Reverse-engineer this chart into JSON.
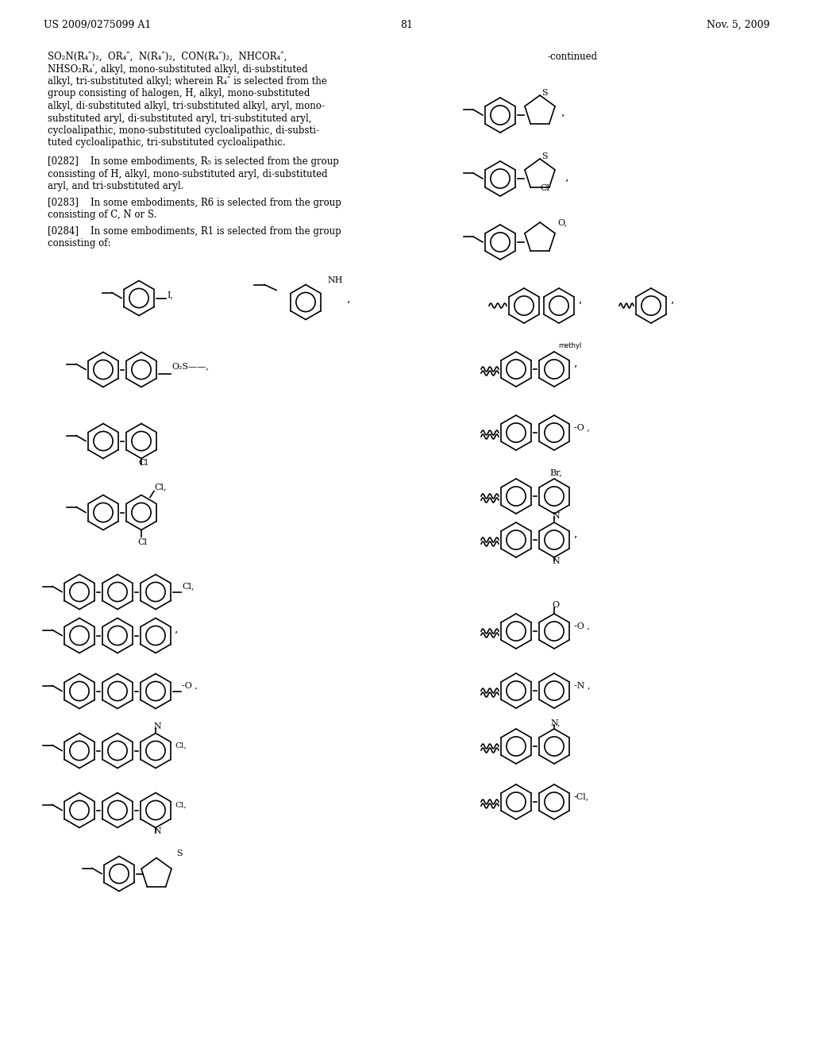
{
  "page_number": "81",
  "patent_number": "US 2009/0275099 A1",
  "patent_date": "Nov. 5, 2009",
  "background_color": "#ffffff",
  "text_color": "#000000",
  "paragraph_text": [
    "SO₂N(R₄″)₂,  OR₄″,  N(R₄″)₂,  CON(R₄″)₂,  NHCOR₄″,",
    "NHSO₂R₄′, alkyl, mono-substituted alkyl, di-substituted",
    "alkyl, tri-substituted alkyl; wherein R₄″ is selected from the",
    "group consisting of halogen, H, alkyl, mono-substituted",
    "alkyl, di-substituted alkyl, tri-substituted alkyl, aryl, mono-",
    "substituted aryl, di-substituted aryl, tri-substituted aryl,",
    "cycloalipathic, mono-substituted cycloalipathic, di-substi-",
    "tuted cycloalipathic, tri-substituted cycloalipathic."
  ],
  "paragraph_0282": "[0282]    In some embodiments, R₅ is selected from the group consisting of H, alkyl, mono-substituted aryl, di-substituted aryl, and tri-substituted aryl.",
  "paragraph_0283": "[0283]    In some embodiments, R6 is selected from the group consisting of C, N or S.",
  "paragraph_0284": "[0284]    In some embodiments, R1 is selected from the group consisting of:",
  "continued_label": "-continued"
}
